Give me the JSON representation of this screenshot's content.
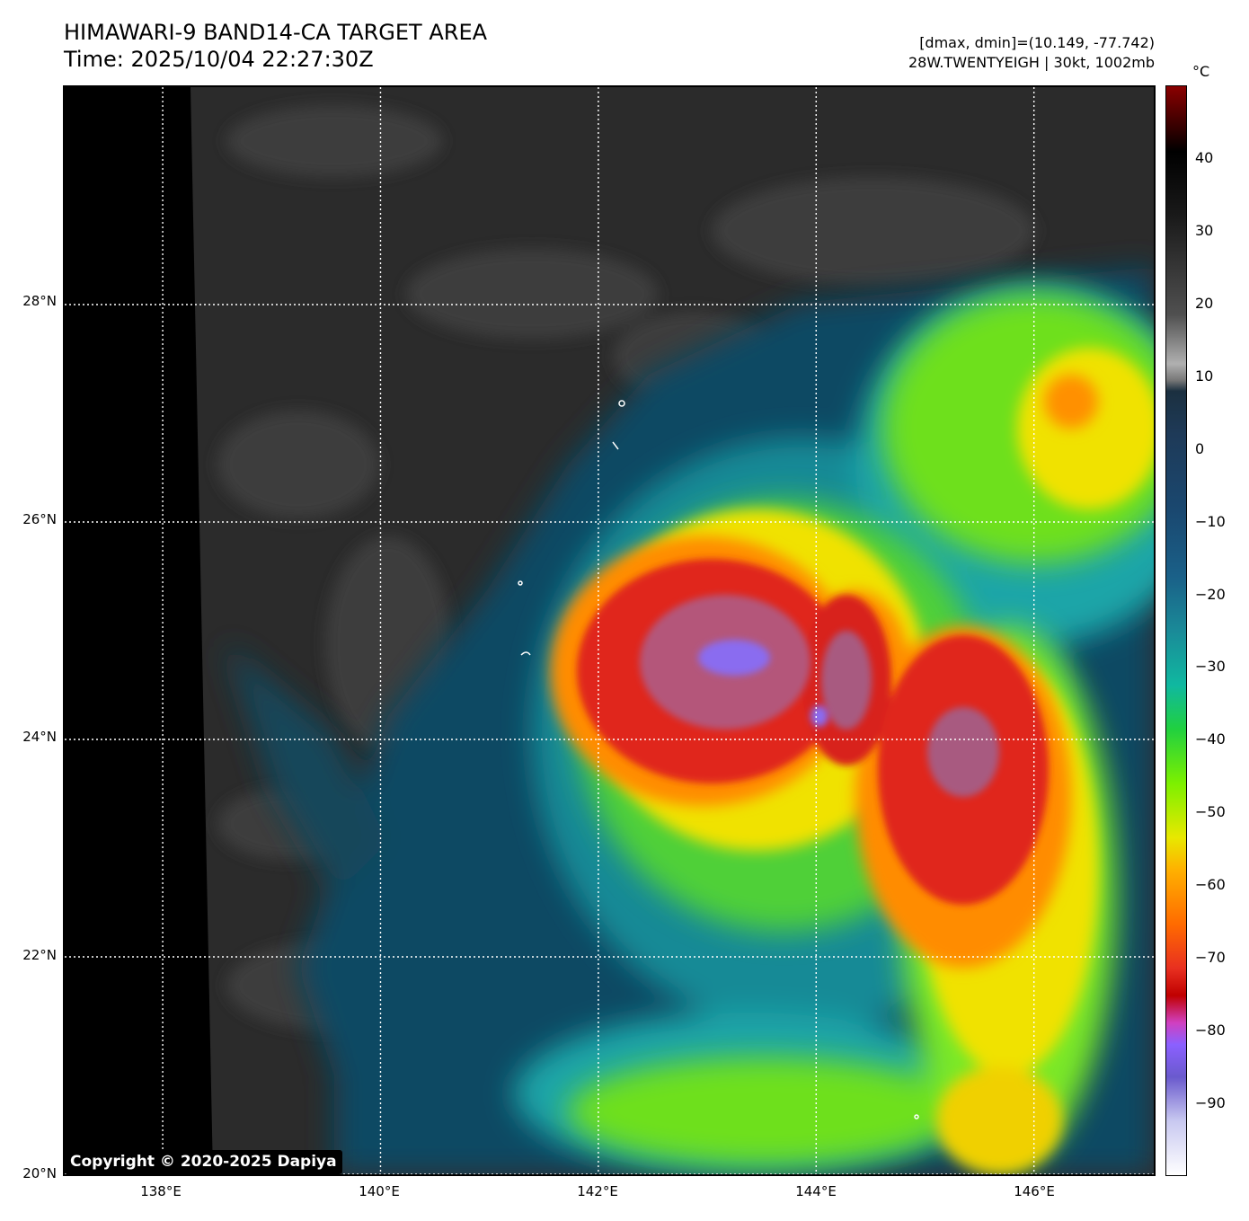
{
  "header": {
    "title_line1": "HIMAWARI-9 BAND14-CA TARGET AREA",
    "title_line2": "Time: 2025/10/04 22:27:30Z",
    "info_line1": "[dmax, dmin]=(10.149, -77.742)",
    "info_line2": "28W.TWENTYEIGH | 30kt, 1002mb"
  },
  "map": {
    "lat_labels": [
      "28°N",
      "26°N",
      "24°N",
      "22°N",
      "20°N"
    ],
    "lon_labels": [
      "138°E",
      "140°E",
      "142°E",
      "144°E",
      "146°E"
    ],
    "lat_values": [
      28,
      26,
      24,
      22,
      20
    ],
    "lon_values": [
      138,
      140,
      142,
      144,
      146
    ],
    "extent": {
      "lon_min": 137.1,
      "lon_max": 147.1,
      "lat_min": 20,
      "lat_max": 30
    },
    "colors": {
      "cold_land": "#2a2a2a",
      "ocean_band": "#0f4a63",
      "cyan": "#1aa5a8",
      "green": "#6ee01f",
      "yellow": "#f0e200",
      "orange": "#ff8c00",
      "red": "#e0281a",
      "core": "#b4567a",
      "purple": "#8a6cf0"
    }
  },
  "colorbar": {
    "unit": "°C",
    "labels": [
      "40",
      "30",
      "20",
      "10",
      "0",
      "−10",
      "−20",
      "−30",
      "−40",
      "−50",
      "−60",
      "−70",
      "−80",
      "−90"
    ],
    "values": [
      40,
      30,
      20,
      10,
      0,
      -10,
      -20,
      -30,
      -40,
      -50,
      -60,
      -70,
      -80,
      -90
    ],
    "min": -100,
    "max": 50
  },
  "copyright": "Copyright © 2020-2025 Dapiya"
}
